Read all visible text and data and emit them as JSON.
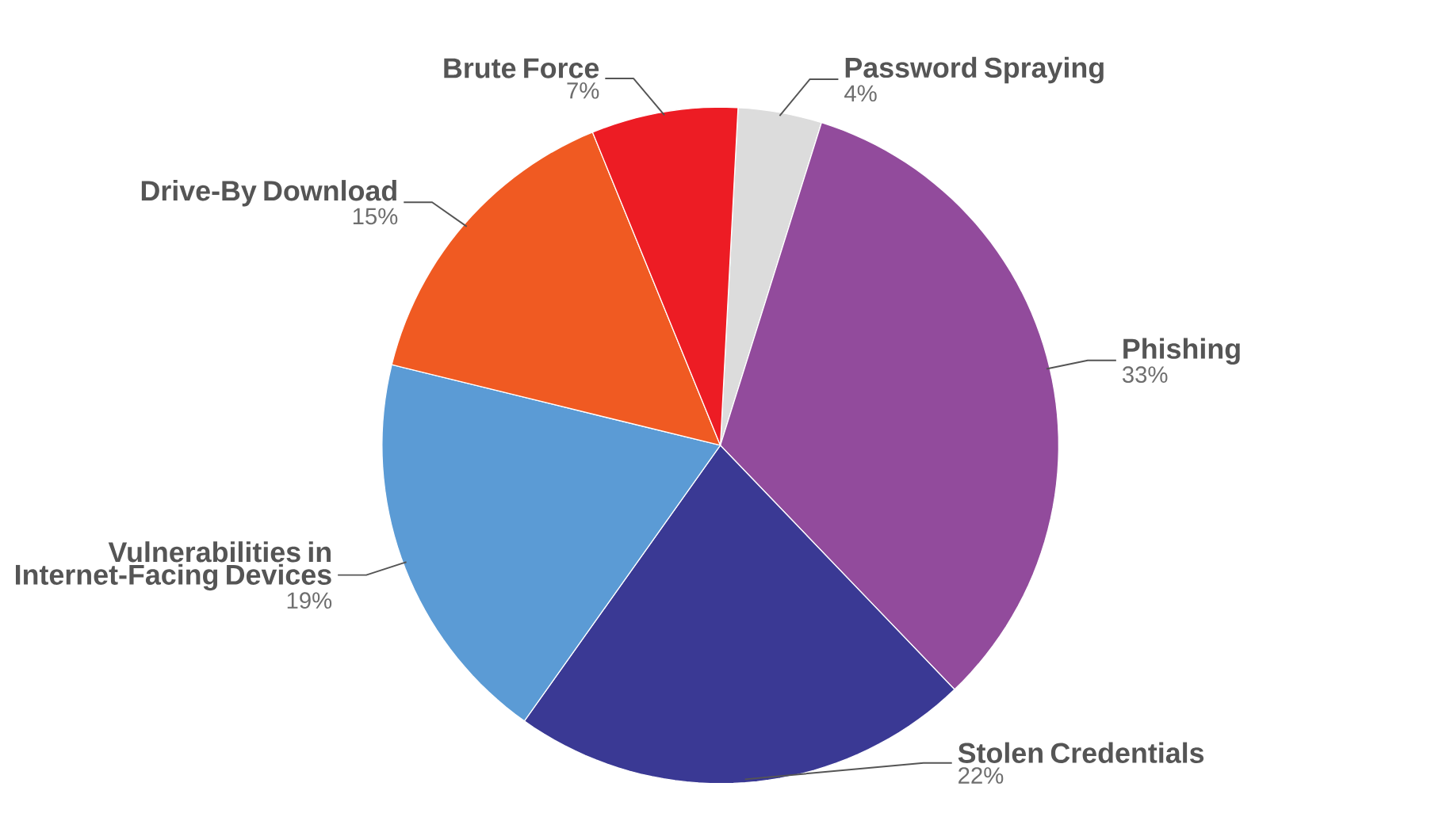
{
  "chart_data": {
    "type": "pie",
    "categories": [
      "Password Spraying",
      "Phishing",
      "Stolen Credentials",
      "Vulnerabilities in Internet-Facing Devices",
      "Drive-By Download",
      "Brute Force"
    ],
    "values": [
      4,
      33,
      22,
      19,
      15,
      7
    ],
    "value_labels": [
      "4%",
      "33%",
      "22%",
      "19%",
      "15%",
      "7%"
    ],
    "colors": [
      "#dcdcdc",
      "#924b9c",
      "#3a3994",
      "#5b9bd5",
      "#f05a22",
      "#ed1c24"
    ]
  }
}
